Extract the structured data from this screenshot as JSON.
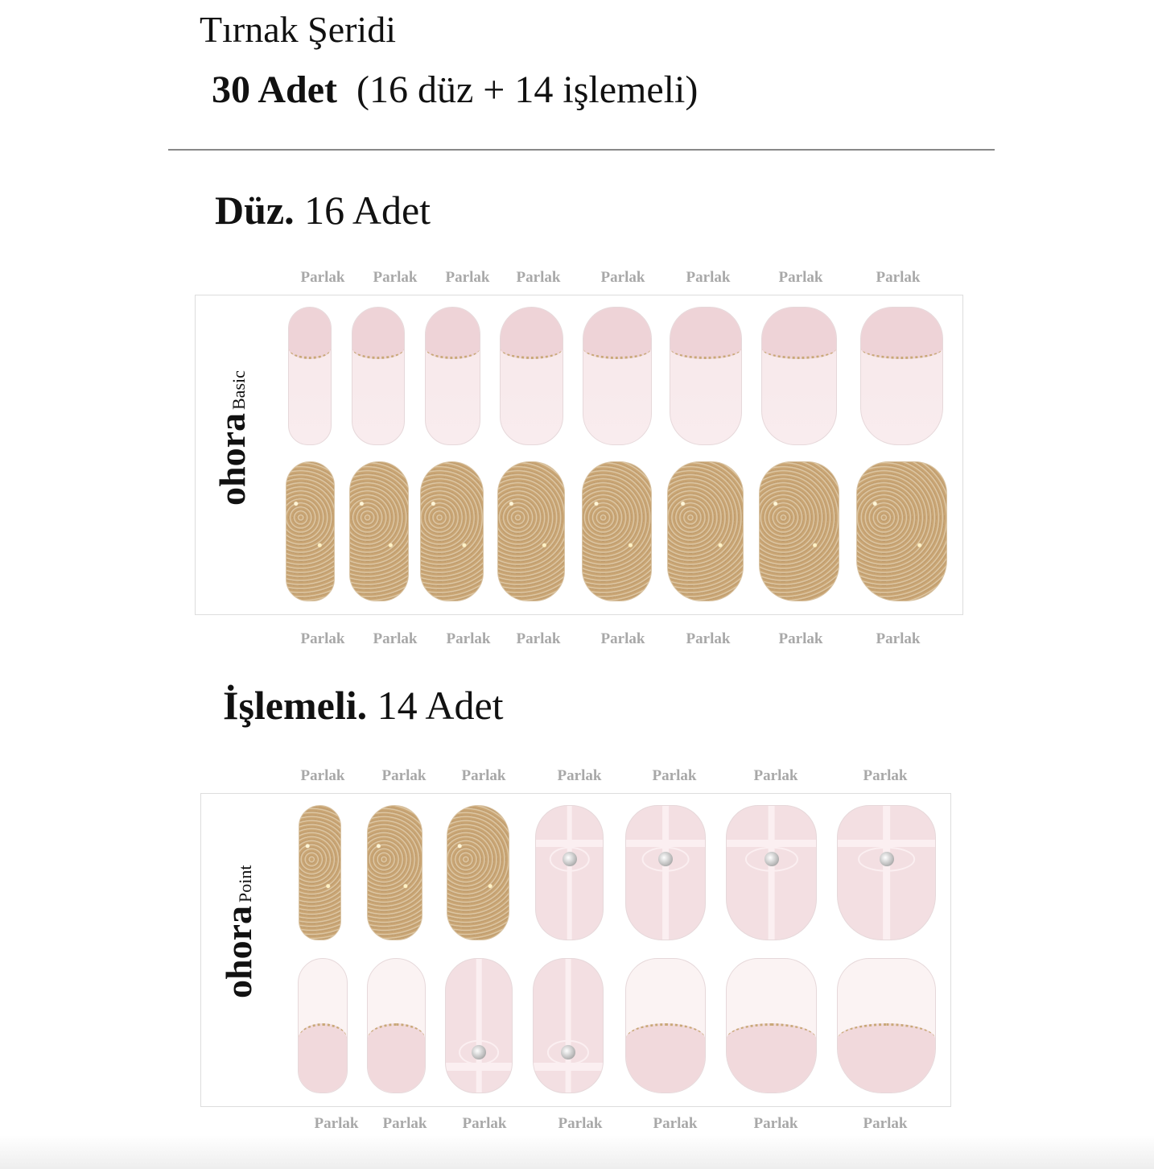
{
  "header": {
    "title": "Tırnak Şeridi",
    "count_bold": "30 Adet",
    "count_detail": "(16 düz + 14 işlemeli)"
  },
  "plain": {
    "heading_bold": "Düz.",
    "heading_rest": "16 Adet",
    "brand": "ohora",
    "line": "Basic",
    "labels_top": [
      "Parlak",
      "Parlak",
      "Parlak",
      "Parlak",
      "Parlak",
      "Parlak",
      "Parlak",
      "Parlak"
    ],
    "labels_bottom": [
      "Parlak",
      "Parlak",
      "Parlak",
      "Parlak",
      "Parlak",
      "Parlak",
      "Parlak",
      "Parlak"
    ],
    "row1_types": [
      "french-top",
      "french-top",
      "french-top",
      "french-top",
      "french-top",
      "french-top",
      "french-top",
      "french-top"
    ],
    "row2_types": [
      "glitter",
      "glitter",
      "glitter",
      "glitter",
      "glitter",
      "glitter",
      "glitter",
      "glitter"
    ]
  },
  "design": {
    "heading_bold": "İşlemeli.",
    "heading_rest": "14 Adet",
    "brand": "ohora",
    "line": "Point",
    "labels_top": [
      "Parlak",
      "Parlak",
      "Parlak",
      "Parlak",
      "Parlak",
      "Parlak",
      "Parlak"
    ],
    "labels_bottom": [
      "Parlak",
      "Parlak",
      "Parlak",
      "Parlak",
      "Parlak",
      "Parlak",
      "Parlak"
    ],
    "row1_types": [
      "glitter",
      "glitter",
      "glitter",
      "gift",
      "gift",
      "gift",
      "gift"
    ],
    "row2_types": [
      "french-bottom",
      "french-bottom",
      "gift-low",
      "gift-low",
      "french-bottom",
      "french-bottom",
      "french-bottom"
    ]
  },
  "colors": {
    "nail_pink": "#f3dfe2",
    "glitter_gold": "#cfb08a",
    "label_gray": "#a8a8a8"
  }
}
